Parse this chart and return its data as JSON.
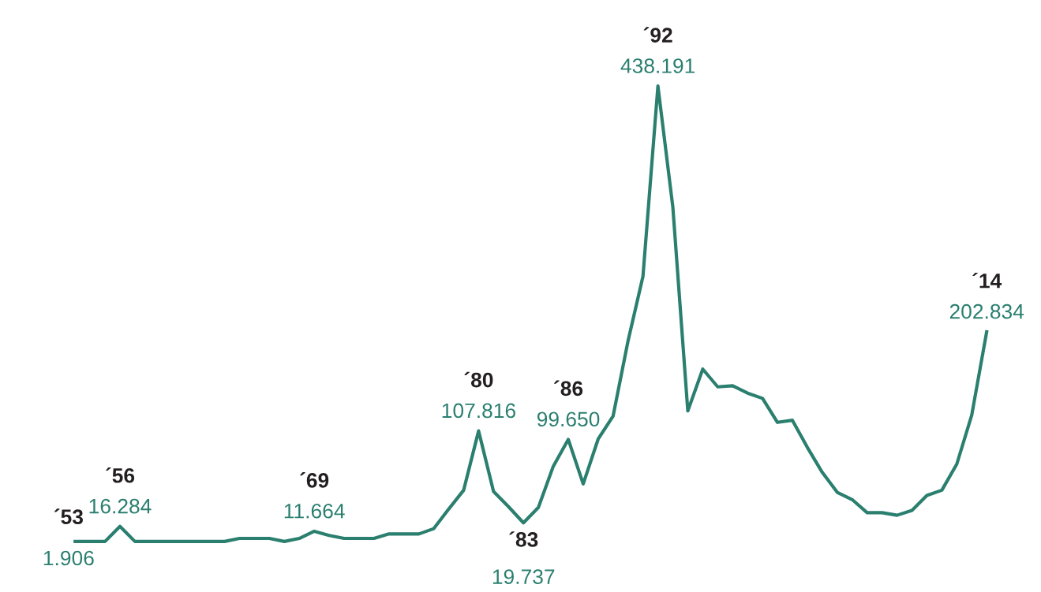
{
  "chart_data": {
    "type": "line",
    "tick_labels": false,
    "marker": "none",
    "line_style": "solid",
    "categories": [
      "´53",
      null,
      null,
      "´56",
      null,
      null,
      null,
      null,
      null,
      null,
      null,
      null,
      null,
      null,
      null,
      null,
      "´69",
      null,
      null,
      null,
      null,
      null,
      null,
      null,
      null,
      null,
      null,
      "´80",
      null,
      null,
      "´83",
      null,
      null,
      "´86",
      null,
      null,
      null,
      null,
      null,
      "´92",
      null,
      null,
      null,
      null,
      null,
      null,
      null,
      null,
      null,
      null,
      null,
      null,
      null,
      null,
      null,
      null,
      null,
      null,
      null,
      null,
      null,
      "´14"
    ],
    "series": [
      {
        "color": "#2a7f6f",
        "values": [
          1.906,
          1.9,
          1.9,
          16.284,
          1.9,
          1.9,
          1.9,
          1.9,
          1.9,
          1.9,
          1.9,
          4.8,
          4.8,
          4.8,
          1.9,
          4.8,
          11.664,
          7.7,
          4.8,
          4.8,
          4.8,
          9.1,
          9.1,
          9.1,
          14.2,
          33,
          51,
          107.816,
          49.7,
          35.2,
          19.737,
          34.5,
          74,
          99.65,
          57,
          100,
          122,
          194,
          256,
          438.191,
          322,
          127,
          167,
          150,
          151,
          144,
          139,
          116,
          118,
          92,
          68,
          49,
          42,
          29.5,
          29.5,
          27,
          31.6,
          46,
          51,
          76,
          123,
          202.834
        ],
        "value_labels": [
          "1.906",
          null,
          null,
          "16.284",
          null,
          null,
          null,
          null,
          null,
          null,
          null,
          null,
          null,
          null,
          null,
          null,
          "11.664",
          null,
          null,
          null,
          null,
          null,
          null,
          null,
          null,
          null,
          null,
          "107.816",
          null,
          null,
          "19.737",
          null,
          null,
          "99.650",
          null,
          null,
          null,
          null,
          null,
          "438.191",
          null,
          null,
          null,
          null,
          null,
          null,
          null,
          null,
          null,
          null,
          null,
          null,
          null,
          null,
          null,
          null,
          null,
          null,
          null,
          null,
          null,
          "202.834"
        ]
      }
    ]
  }
}
